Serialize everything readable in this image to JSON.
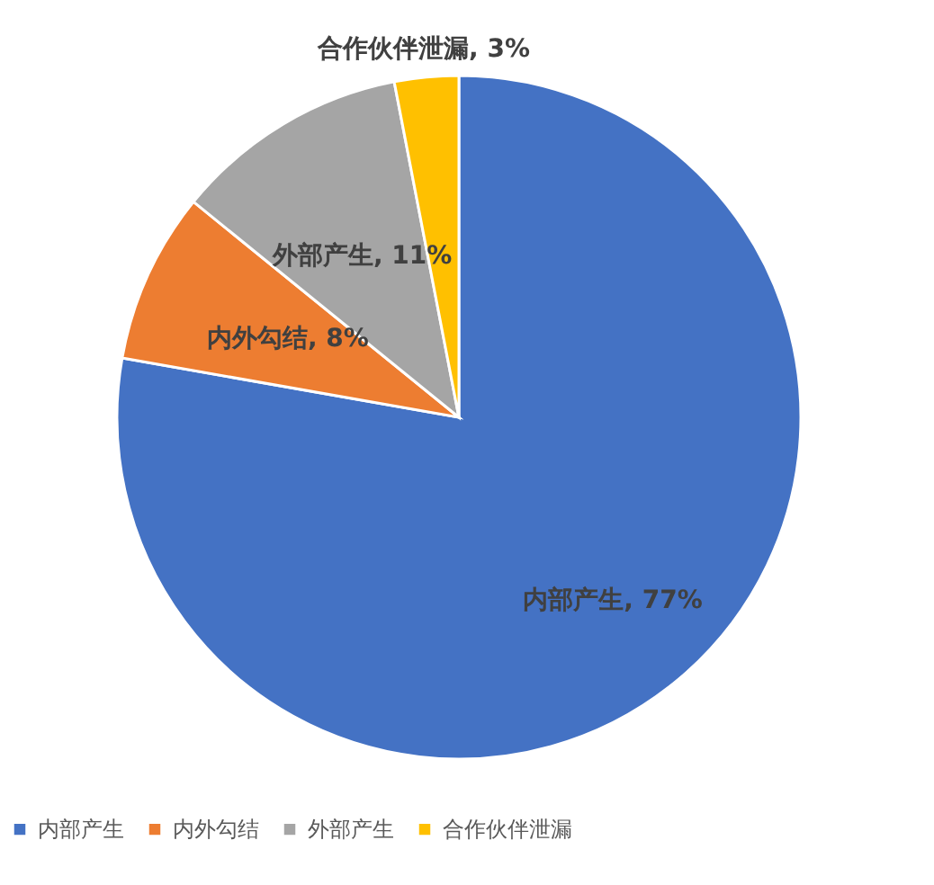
{
  "chart_data": {
    "type": "pie",
    "categories": [
      "内部产生",
      "内外勾结",
      "外部产生",
      "合作伙伴泄漏"
    ],
    "values": [
      77,
      8,
      11,
      3
    ],
    "colors": [
      "#4472c4",
      "#ed7d31",
      "#a5a5a5",
      "#ffc000"
    ],
    "value_labels": [
      "内部产生, 77%",
      "内外勾结, 8%",
      "外部产生, 11%",
      "合作伙伴泄漏, 3%"
    ],
    "legend": "bottom"
  }
}
